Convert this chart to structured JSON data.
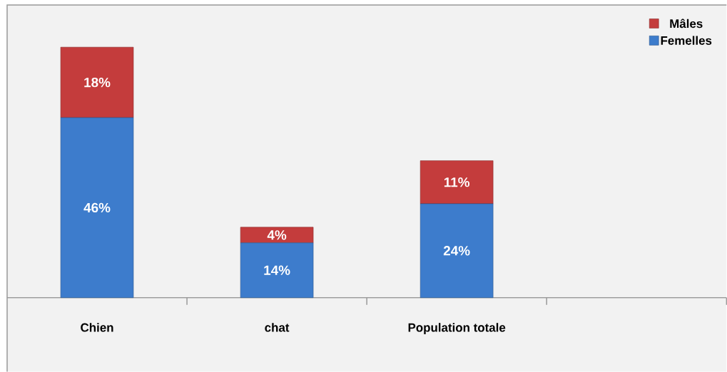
{
  "chart_data": {
    "type": "bar",
    "stacked": true,
    "categories": [
      "Chien",
      "chat",
      "Population totale",
      null
    ],
    "series": [
      {
        "name": "Femelles",
        "color": "#3d7ccc",
        "values": [
          46,
          14,
          24,
          null
        ],
        "value_labels": [
          "46%",
          "14%",
          "24%",
          null
        ]
      },
      {
        "name": "Mâles",
        "color": "#c43c3c",
        "values": [
          18,
          4,
          11,
          null
        ],
        "value_labels": [
          "18%",
          "4%",
          "11%",
          null
        ]
      }
    ],
    "legend": "top right",
    "tick_labels": "x"
  }
}
